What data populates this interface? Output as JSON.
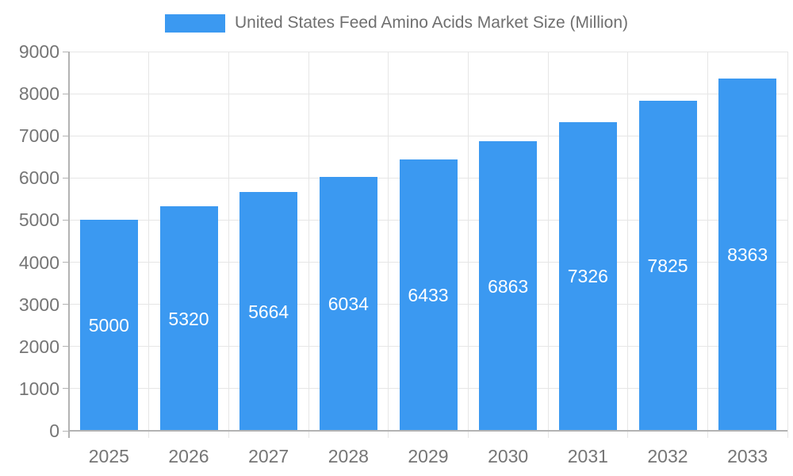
{
  "chart_data": {
    "type": "bar",
    "title": "United States Feed Amino Acids Market Size (Million)",
    "legend": {
      "position": "top",
      "entries": [
        {
          "label": "United States Feed Amino Acids Market Size (Million)",
          "color": "#3B99F1"
        }
      ]
    },
    "categories": [
      "2025",
      "2026",
      "2027",
      "2028",
      "2029",
      "2030",
      "2031",
      "2032",
      "2033"
    ],
    "series": [
      {
        "name": "United States Feed Amino Acids Market Size (Million)",
        "values": [
          5000,
          5320,
          5664,
          6034,
          6433,
          6863,
          7326,
          7825,
          8363
        ]
      }
    ],
    "data_labels_shown": true,
    "xlabel": "",
    "ylabel": "",
    "ylim": [
      0,
      9000
    ],
    "ytick_step": 1000,
    "ytick_labels": [
      "0",
      "1000",
      "2000",
      "3000",
      "4000",
      "5000",
      "6000",
      "7000",
      "8000",
      "9000"
    ],
    "grid": "on",
    "colors": {
      "bar": "#3B99F1",
      "bar_label_text": "#FFFFFF",
      "axis_text": "#757575",
      "title_text": "#6F6F6F",
      "gridline": "#E6E6E6",
      "axis_line": "#B3B3B3",
      "background": "#FFFFFF"
    }
  }
}
